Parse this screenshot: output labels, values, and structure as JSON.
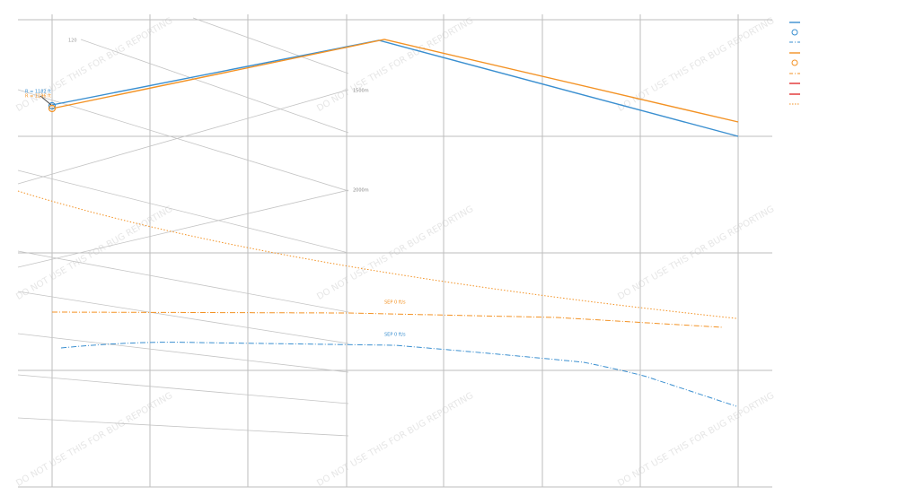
{
  "watermark": "DO NOT USE THIS FOR BUG REPORTING",
  "labels": {
    "speed": "120",
    "distance_1": "1500m",
    "distance_2": "2000m",
    "sep_orange": "SEP 0 ft/s",
    "sep_blue": "SEP 0 ft/s",
    "radius_blue": "R = 1182 ft",
    "radius_orange": "R = 1196 ft"
  }
}
